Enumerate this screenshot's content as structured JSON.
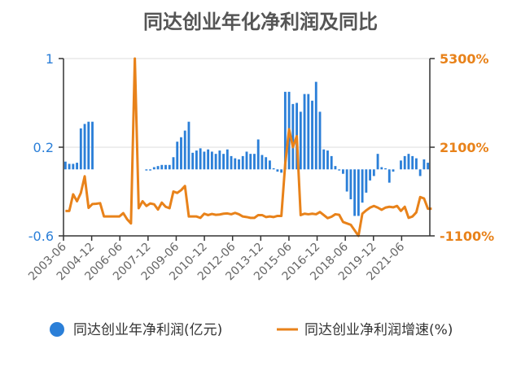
{
  "chart_data": {
    "type": "bar+line",
    "title": "同达创业年化净利润及同比",
    "x_labels": [
      "2003-06",
      "2004-12",
      "2006-06",
      "2007-12",
      "2009-06",
      "2010-12",
      "2012-06",
      "2013-12",
      "2015-06",
      "2016-12",
      "2018-06",
      "2019-12",
      "2021-06"
    ],
    "left_axis": {
      "ticks": [
        "1",
        "0.2",
        "-0.6"
      ],
      "ylim": [
        -0.6,
        1
      ]
    },
    "right_axis": {
      "ticks": [
        "5300%",
        "2100%",
        "-1100%"
      ],
      "ylim": [
        -1100,
        5300
      ]
    },
    "series": [
      {
        "name": "同达创业年净利润(亿元)",
        "type": "bar",
        "axis": "left",
        "color": "#2b7fd8",
        "values": [
          0.07,
          0.05,
          0.05,
          0.06,
          0.37,
          0.41,
          0.43,
          0.43,
          0,
          0,
          0,
          0,
          0,
          0,
          0,
          0,
          0,
          0,
          0,
          0,
          0,
          -0.01,
          -0.01,
          0.02,
          0.03,
          0.04,
          0.04,
          0.04,
          0.11,
          0.25,
          0.29,
          0.35,
          0.43,
          0.15,
          0.17,
          0.19,
          0.16,
          0.18,
          0.16,
          0.14,
          0.17,
          0.14,
          0.18,
          0.12,
          0.1,
          0.09,
          0.12,
          0.16,
          0.14,
          0.14,
          0.27,
          0.13,
          0.11,
          0.08,
          0.01,
          -0.02,
          -0.03,
          0.7,
          0.7,
          0.59,
          0.6,
          0.52,
          0.68,
          0.68,
          0.62,
          0.79,
          0.52,
          0.18,
          0.17,
          0.12,
          0.03,
          -0.01,
          -0.04,
          -0.2,
          -0.27,
          -0.42,
          -0.42,
          -0.3,
          -0.21,
          -0.1,
          -0.06,
          0.14,
          0.02,
          0.01,
          -0.12,
          -0.02,
          0,
          0.08,
          0.12,
          0.14,
          0.12,
          0.1,
          -0.06,
          0.09,
          0.06
        ]
      },
      {
        "name": "同达创业净利润增速(%)",
        "type": "line",
        "axis": "right",
        "color": "#e8821a",
        "values": [
          -200,
          -200,
          400,
          150,
          450,
          1050,
          -90,
          50,
          60,
          80,
          -400,
          -400,
          -400,
          -400,
          -400,
          -280,
          -500,
          -650,
          5300,
          -100,
          150,
          -20,
          70,
          40,
          -150,
          100,
          -50,
          -100,
          500,
          450,
          550,
          700,
          -400,
          -400,
          -400,
          -450,
          -300,
          -350,
          -310,
          -340,
          -330,
          -300,
          -290,
          -320,
          -270,
          -320,
          -400,
          -420,
          -450,
          -450,
          -350,
          -350,
          -420,
          -400,
          -420,
          -380,
          -380,
          1500,
          2750,
          2100,
          2500,
          -350,
          -300,
          -320,
          -300,
          -320,
          -240,
          -350,
          -460,
          -410,
          -320,
          -340,
          -600,
          -650,
          -700,
          -900,
          -1100,
          -300,
          -180,
          -80,
          -20,
          -80,
          -160,
          -80,
          -50,
          -70,
          -20,
          -200,
          -50,
          -450,
          -400,
          -250,
          300,
          250,
          -120,
          -120
        ]
      }
    ],
    "legend": {
      "position": "bottom"
    },
    "grid": true
  }
}
